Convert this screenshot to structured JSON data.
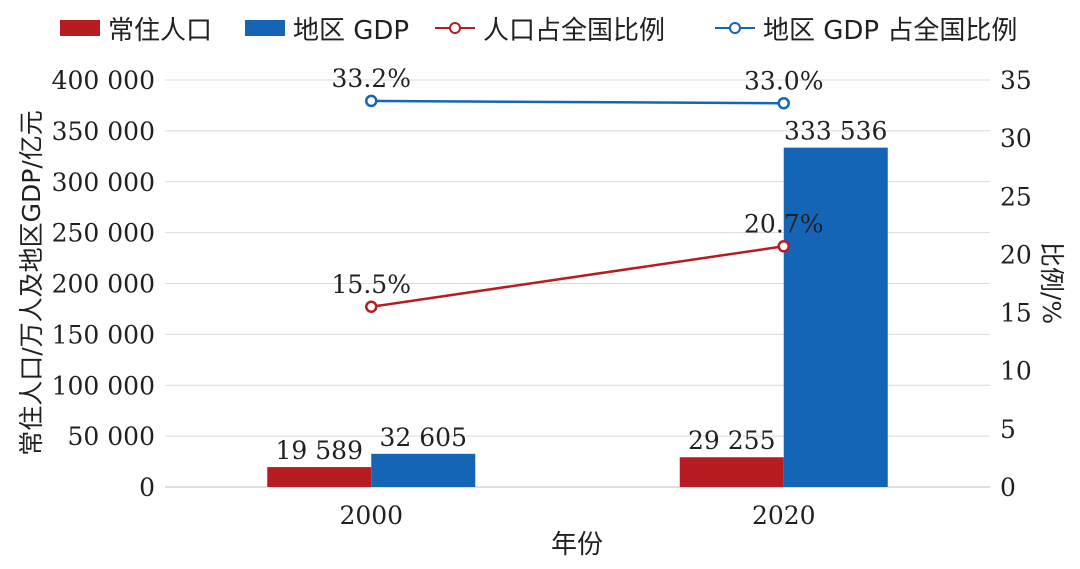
{
  "chart_data": {
    "type": "bar+line",
    "categories": [
      "2000",
      "2020"
    ],
    "xlabel": "年份",
    "ylabel_left": "常住人口/万人及地区GDP/亿元",
    "ylabel_right": "比例/%",
    "ylim_left": [
      0,
      400000
    ],
    "ylim_right": [
      0,
      35
    ],
    "left_ticks": [
      "0",
      "50 000",
      "100 000",
      "150 000",
      "200 000",
      "250 000",
      "300 000",
      "350 000",
      "400 000"
    ],
    "right_ticks": [
      "0",
      "5",
      "10",
      "15",
      "20",
      "25",
      "30",
      "35"
    ],
    "grid": true,
    "legend_position": "top",
    "bar_series": [
      {
        "name": "常住人口",
        "color": "#b71c23",
        "values": [
          19589,
          29255
        ],
        "labels": [
          "19 589",
          "29 255"
        ]
      },
      {
        "name": "地区 GDP",
        "color": "#1565b7",
        "values": [
          32605,
          333536
        ],
        "labels": [
          "32 605",
          "333 536"
        ]
      }
    ],
    "line_series": [
      {
        "name": "人口占全国比例",
        "color": "#b71c23",
        "values": [
          15.5,
          20.7
        ],
        "labels": [
          "15.5%",
          "20.7%"
        ]
      },
      {
        "name": "地区 GDP 占全国比例",
        "color": "#1565b7",
        "values": [
          33.2,
          33.0
        ],
        "labels": [
          "33.2%",
          "33.0%"
        ]
      }
    ]
  }
}
